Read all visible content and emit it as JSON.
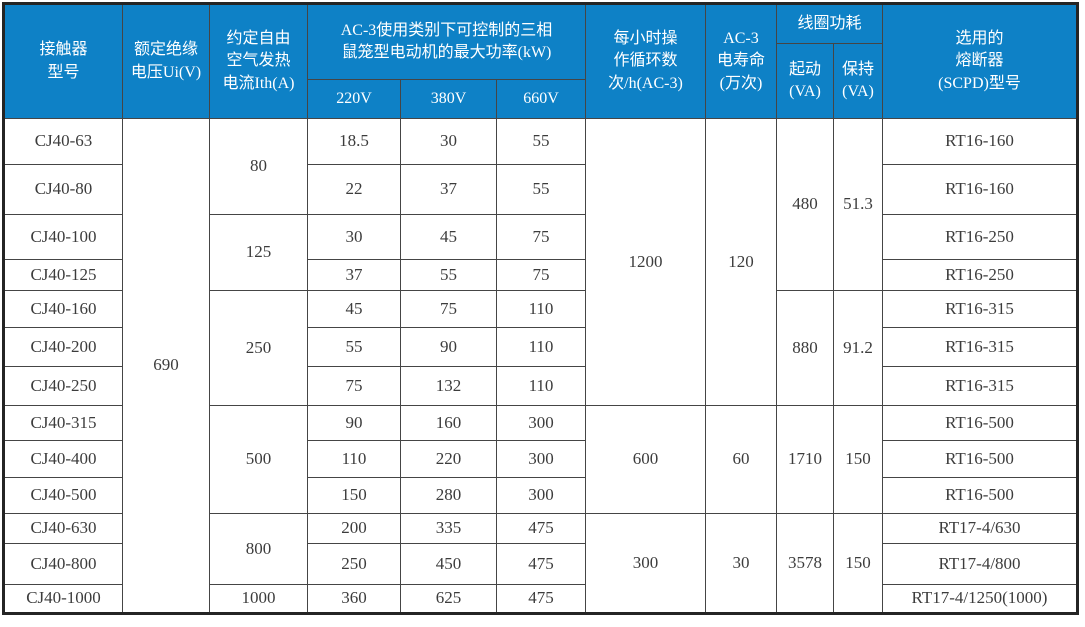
{
  "header": {
    "model": "接触器\n型号",
    "rated_voltage": "额定绝缘\n电压Ui(V)",
    "thermal_current": "约定自由\n空气发热\n电流Ith(A)",
    "power_group": "AC-3使用类别下可控制的三相\n鼠笼型电动机的最大功率(kW)",
    "v220": "220V",
    "v380": "380V",
    "v660": "660V",
    "ops_per_hour": "每小时操\n作循环数\n次/h(AC-3)",
    "electrical_life": "AC-3\n电寿命\n(万次)",
    "coil_power": "线圈功耗",
    "start_va": "起动\n(VA)",
    "hold_va": "保持\n(VA)",
    "fuse": "选用的\n熔断器\n(SCPD)型号"
  },
  "rows": [
    {
      "model": "CJ40-63",
      "p220": "18.5",
      "p380": "30",
      "p660": "55",
      "fuse": "RT16-160"
    },
    {
      "model": "CJ40-80",
      "p220": "22",
      "p380": "37",
      "p660": "55",
      "fuse": "RT16-160"
    },
    {
      "model": "CJ40-100",
      "p220": "30",
      "p380": "45",
      "p660": "75",
      "fuse": "RT16-250"
    },
    {
      "model": "CJ40-125",
      "p220": "37",
      "p380": "55",
      "p660": "75",
      "fuse": "RT16-250"
    },
    {
      "model": "CJ40-160",
      "p220": "45",
      "p380": "75",
      "p660": "110",
      "fuse": "RT16-315"
    },
    {
      "model": "CJ40-200",
      "p220": "55",
      "p380": "90",
      "p660": "110",
      "fuse": "RT16-315"
    },
    {
      "model": "CJ40-250",
      "p220": "75",
      "p380": "132",
      "p660": "110",
      "fuse": "RT16-315"
    },
    {
      "model": "CJ40-315",
      "p220": "90",
      "p380": "160",
      "p660": "300",
      "fuse": "RT16-500"
    },
    {
      "model": "CJ40-400",
      "p220": "110",
      "p380": "220",
      "p660": "300",
      "fuse": "RT16-500"
    },
    {
      "model": "CJ40-500",
      "p220": "150",
      "p380": "280",
      "p660": "300",
      "fuse": "RT16-500"
    },
    {
      "model": "CJ40-630",
      "p220": "200",
      "p380": "335",
      "p660": "475",
      "fuse": "RT17-4/630"
    },
    {
      "model": "CJ40-800",
      "p220": "250",
      "p380": "450",
      "p660": "475",
      "fuse": "RT17-4/800"
    },
    {
      "model": "CJ40-1000",
      "p220": "360",
      "p380": "625",
      "p660": "475",
      "fuse": "RT17-4/1250(1000)"
    }
  ],
  "merged": {
    "rated_voltage": "690",
    "thermal_current": [
      "80",
      "125",
      "250",
      "500",
      "800",
      "1000"
    ],
    "ops": [
      "1200",
      "600",
      "300"
    ],
    "life": [
      "120",
      "60",
      "30"
    ],
    "start": [
      "480",
      "880",
      "1710",
      "3578"
    ],
    "hold": [
      "51.3",
      "91.2",
      "150",
      "150"
    ]
  },
  "colors": {
    "header_bg": "#0e81c6",
    "header_text": "#ffffff",
    "grid_line": "#454545",
    "body_text": "#3c3c3c"
  }
}
